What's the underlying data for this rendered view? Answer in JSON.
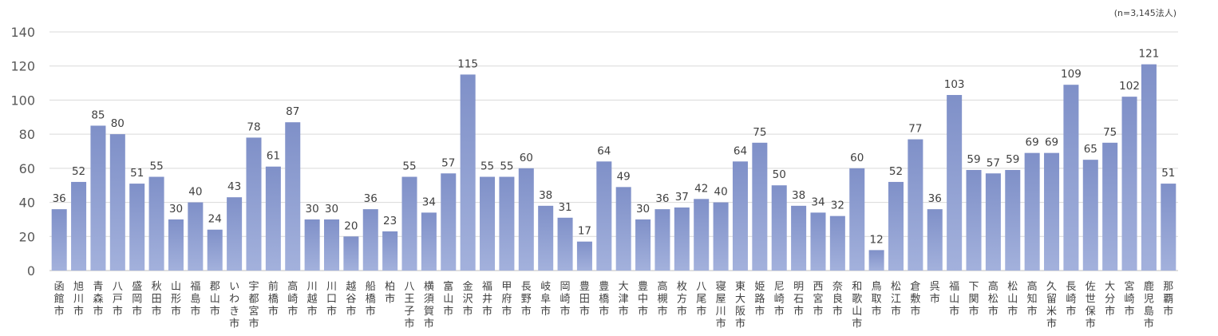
{
  "note": "(n=3,145法人)",
  "chart_data": {
    "type": "bar",
    "title": "",
    "xlabel": "",
    "ylabel": "",
    "ylim": [
      0,
      140
    ],
    "yticks": [
      0,
      20,
      40,
      60,
      80,
      100,
      120,
      140
    ],
    "grid": true,
    "bar_color": "#8e9fd2",
    "categories": [
      "函館市",
      "旭川市",
      "青森市",
      "八戸市",
      "盛岡市",
      "秋田市",
      "山形市",
      "福島市",
      "郡山市",
      "いわき市",
      "宇都宮市",
      "前橋市",
      "高崎市",
      "川越市",
      "川口市",
      "越谷市",
      "船橋市",
      "柏市",
      "八王子市",
      "横須賀市",
      "富山市",
      "金沢市",
      "福井市",
      "甲府市",
      "長野市",
      "岐阜市",
      "岡崎市",
      "豊田市",
      "豊橋市",
      "大津市",
      "豊中市",
      "高槻市",
      "枚方市",
      "八尾市",
      "寝屋川市",
      "東大阪市",
      "姫路市",
      "尼崎市",
      "明石市",
      "西宮市",
      "奈良市",
      "和歌山市",
      "鳥取市",
      "松江市",
      "倉敷市",
      "呉市",
      "福山市",
      "下関市",
      "高松市",
      "松山市",
      "高知市",
      "久留米市",
      "長崎市",
      "佐世保市",
      "大分市",
      "宮崎市",
      "鹿児島市",
      "那覇市"
    ],
    "values": [
      36,
      52,
      85,
      80,
      51,
      55,
      30,
      40,
      24,
      43,
      78,
      61,
      87,
      30,
      30,
      20,
      36,
      23,
      55,
      34,
      57,
      115,
      55,
      55,
      60,
      38,
      31,
      17,
      64,
      49,
      30,
      36,
      37,
      42,
      40,
      64,
      75,
      50,
      38,
      34,
      32,
      60,
      12,
      52,
      77,
      36,
      103,
      59,
      57,
      59,
      69,
      69,
      109,
      65,
      75,
      102,
      121,
      51
    ]
  }
}
